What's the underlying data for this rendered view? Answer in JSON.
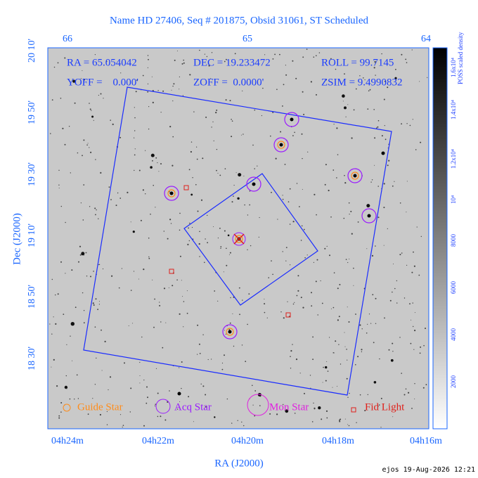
{
  "header": {
    "title": "Name HD 27406, Seq # 201875, Obsid 31061, ST Scheduled"
  },
  "info": {
    "ra": "RA = 65.054042",
    "dec": "DEC = 19.233472",
    "roll": "ROLL = 99.7145",
    "yoff": "YOFF =    0.000'",
    "zoff": "ZOFF =  0.0000'",
    "zsim": "ZSIM = 9.4990832"
  },
  "axes": {
    "top_ticks": [
      "66",
      "65",
      "64"
    ],
    "left_ticks": [
      "20 10'",
      "19 50'",
      "19 30'",
      "19 10'",
      "18 50'",
      "18 30'"
    ],
    "bottom_ticks": [
      "04h24m",
      "04h22m",
      "04h20m",
      "04h18m",
      "04h16m"
    ],
    "x_label": "RA (J2000)",
    "y_label": "Dec (J2000)"
  },
  "colorbar": {
    "ticks": [
      "2000",
      "4000",
      "6000",
      "8000",
      "10⁴",
      "1.2x10⁴",
      "1.4x10⁴",
      "1.6x10⁴"
    ],
    "label": "POSS scaled density"
  },
  "legend": [
    "Guide Star",
    "Acq Star",
    "Mon Star",
    "Fid Light"
  ],
  "footer": "ejos 19-Aug-2026 12:21"
}
